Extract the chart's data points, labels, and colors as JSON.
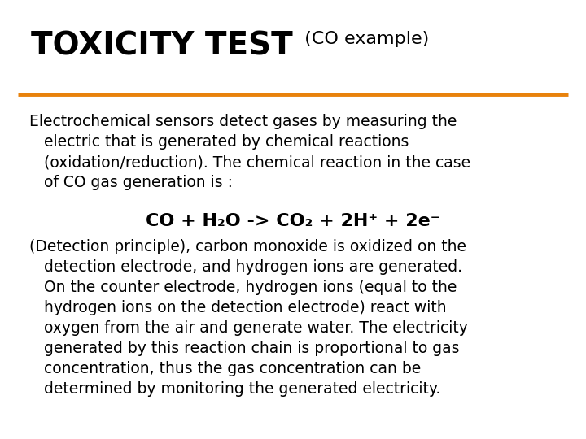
{
  "title_bold": "TOXICITY TEST",
  "title_normal": "(CO example)",
  "line_color": "#E8820C",
  "background_color": "#ffffff",
  "text_color": "#000000",
  "paragraph1": "Electrochemical sensors detect gases by measuring the\n   electric that is generated by chemical reactions\n   (oxidation/reduction). The chemical reaction in the case\n   of CO gas generation is :",
  "equation": "CO + H₂O -> CO₂ + 2H⁺ + 2e⁻",
  "paragraph2": "(Detection principle), carbon monoxide is oxidized on the\n   detection electrode, and hydrogen ions are generated.\n   On the counter electrode, hydrogen ions (equal to the\n   hydrogen ions on the detection electrode) react with\n   oxygen from the air and generate water. The electricity\n   generated by this reaction chain is proportional to gas\n   concentration, thus the gas concentration can be\n   determined by monitoring the generated electricity.",
  "title_fontsize": 28,
  "subtitle_fontsize": 16,
  "body_fontsize": 13.5,
  "equation_fontsize": 16
}
